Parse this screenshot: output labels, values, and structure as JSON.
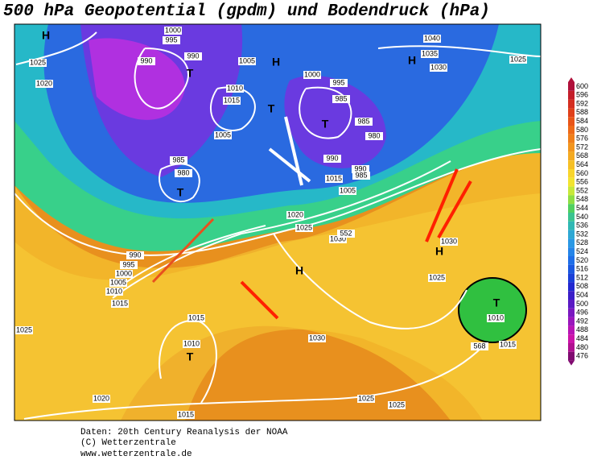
{
  "map": {
    "title": "500 hPa Geopotential (gpdm) und Bodendruck (hPa)",
    "footer": [
      "Daten: 20th Century Reanalysis der NOAA",
      "(C) Wetterzentrale",
      "www.wetterzentrale.de"
    ],
    "labels": [
      "H",
      "1000",
      "995",
      "990",
      "T",
      "990",
      "1005",
      "H",
      "1010",
      "1015",
      "T",
      "1005",
      "1000",
      "995",
      "985",
      "T",
      "985",
      "980",
      "985",
      "980",
      "T",
      "990",
      "990",
      "985",
      "1015",
      "1005",
      "1020",
      "1025",
      "1030",
      "552",
      "990",
      "995",
      "1000",
      "1005",
      "1010",
      "1015",
      "H",
      "1030",
      "H",
      "1025",
      "1025",
      "T",
      "1010",
      "1015",
      "568",
      "1015",
      "1010",
      "T",
      "1030",
      "1020",
      "1025",
      "1025",
      "1015",
      "1025",
      "1020",
      "1040",
      "1035",
      "1030",
      "1025",
      "H"
    ]
  },
  "legend": {
    "ticks": [
      600,
      596,
      592,
      588,
      584,
      580,
      576,
      572,
      568,
      564,
      560,
      556,
      552,
      548,
      544,
      540,
      536,
      532,
      528,
      524,
      520,
      516,
      512,
      508,
      504,
      500,
      496,
      492,
      488,
      484,
      480,
      476
    ]
  }
}
